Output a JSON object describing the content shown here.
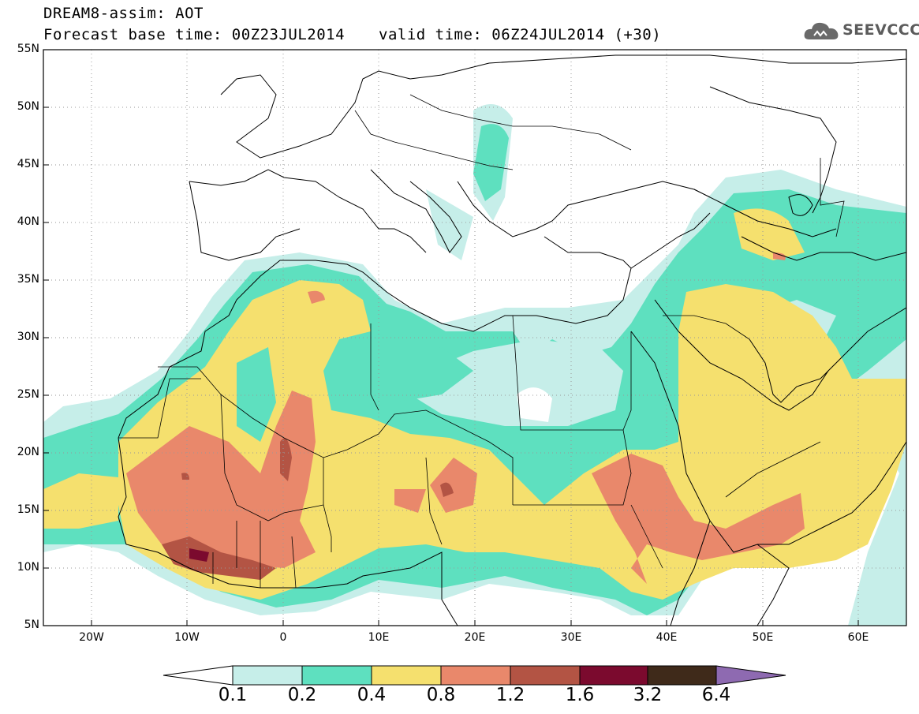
{
  "header": {
    "line1": "DREAM8-assim: AOT",
    "line2a": "Forecast base time: 00Z23JUL2014",
    "line2b": "valid time: 06Z24JUL2014 (+30)",
    "logo_text": "SEEVCCC",
    "logo_icon": "cloud-icon"
  },
  "map": {
    "lat_labels": [
      "55N",
      "50N",
      "45N",
      "40N",
      "35N",
      "30N",
      "25N",
      "20N",
      "15N",
      "10N",
      "5N"
    ],
    "lon_labels": [
      "20W",
      "10W",
      "0",
      "10E",
      "20E",
      "30E",
      "40E",
      "50E",
      "60E"
    ],
    "lat_range": [
      5,
      55
    ],
    "lon_range": [
      -25,
      65
    ],
    "grid": "dotted",
    "field": "AOT"
  },
  "legend": {
    "bins": [
      {
        "from": 0.1,
        "to": 0.2,
        "color": "#c6eee9"
      },
      {
        "from": 0.2,
        "to": 0.4,
        "color": "#5ee0bf"
      },
      {
        "from": 0.4,
        "to": 0.8,
        "color": "#f5e06e"
      },
      {
        "from": 0.8,
        "to": 1.2,
        "color": "#e9886b"
      },
      {
        "from": 1.2,
        "to": 1.6,
        "color": "#b35444"
      },
      {
        "from": 1.6,
        "to": 3.2,
        "color": "#7b0a2e"
      },
      {
        "from": 3.2,
        "to": 6.4,
        "color": "#3f2a1a"
      },
      {
        "from": 6.4,
        "to": null,
        "color": "#8e6ab1"
      }
    ],
    "labels": [
      "0.1",
      "0.2",
      "0.4",
      "0.8",
      "1.2",
      "1.6",
      "3.2",
      "6.4"
    ]
  }
}
